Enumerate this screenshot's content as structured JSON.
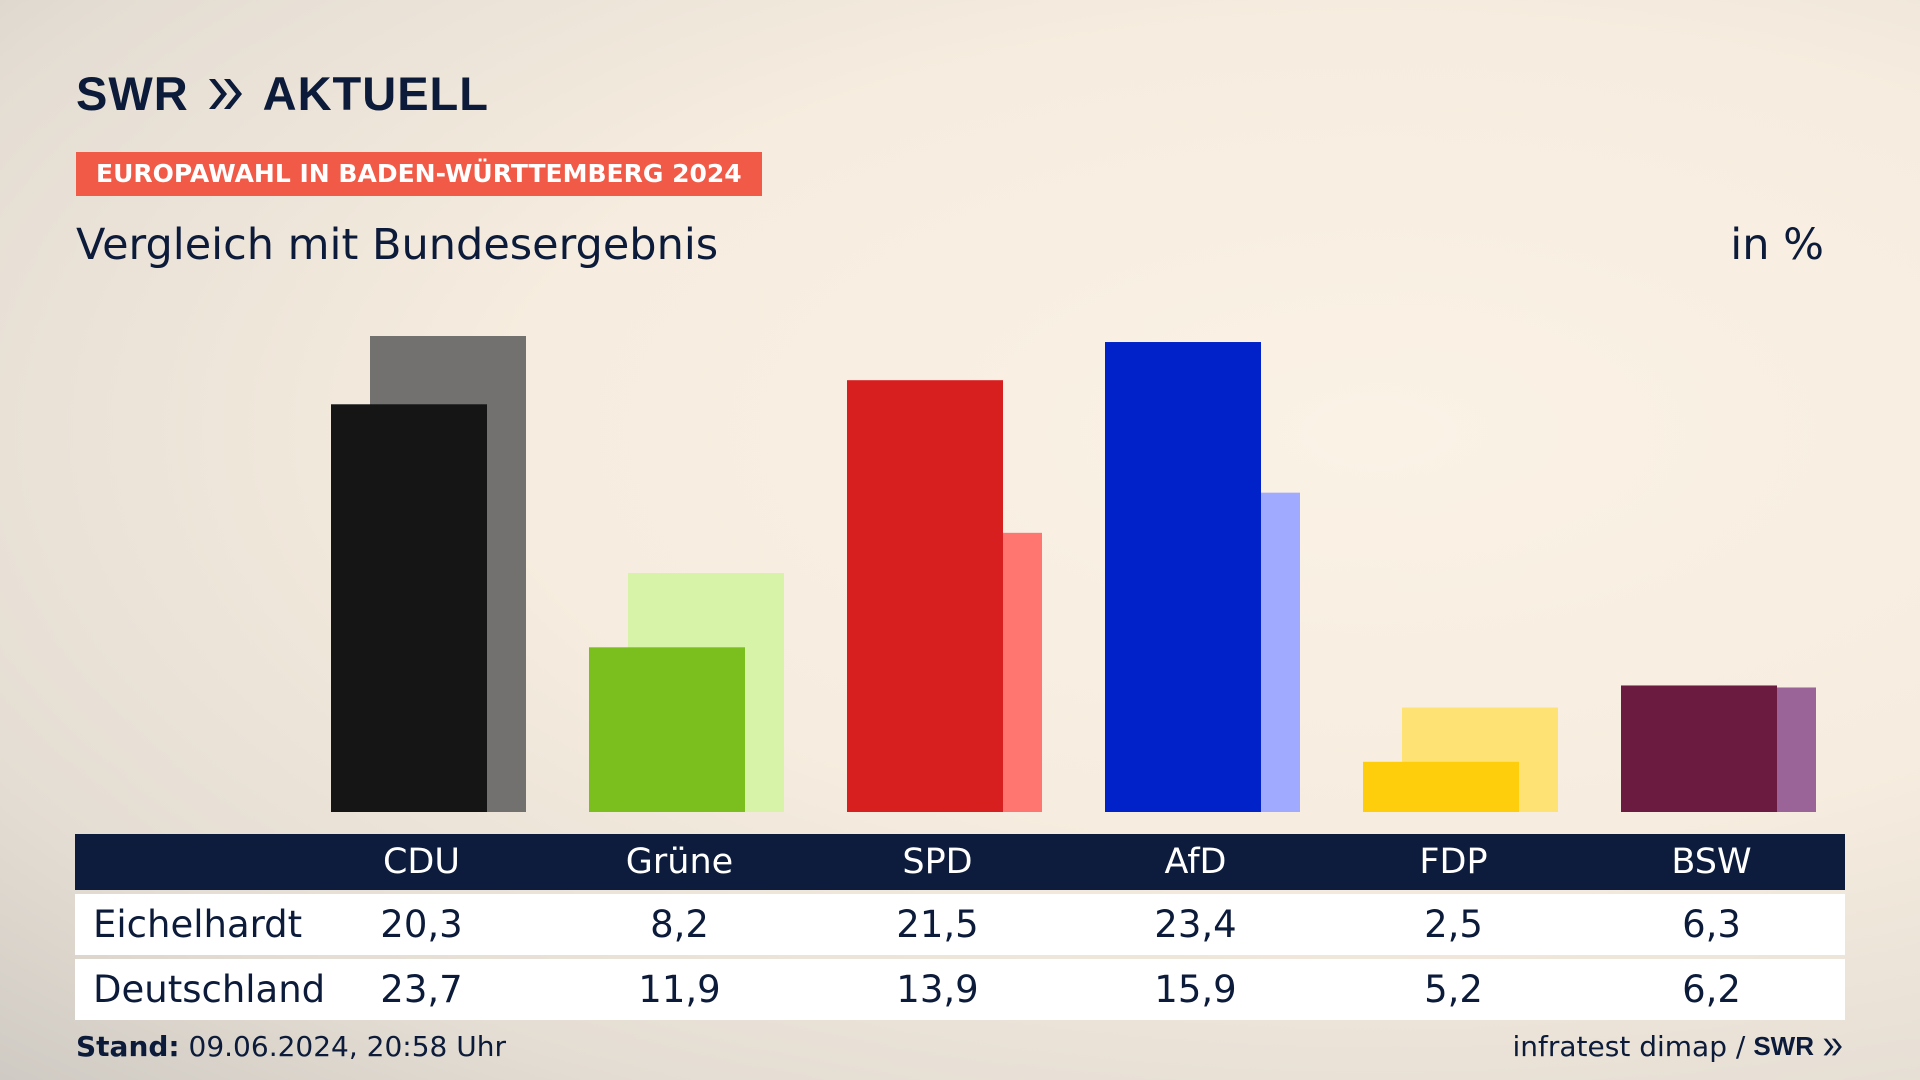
{
  "header": {
    "brand": "SWR",
    "brand_word": "AKTUELL",
    "topic": "EUROPAWAHL IN BADEN-WÜRTTEMBERG 2024",
    "subtitle": "Vergleich mit Bundesergebnis",
    "unit": "in %"
  },
  "chart_data": {
    "type": "bar",
    "title": "Vergleich mit Bundesergebnis",
    "unit": "in %",
    "categories": [
      "CDU",
      "Grüne",
      "SPD",
      "AfD",
      "FDP",
      "BSW"
    ],
    "series": [
      {
        "name": "Eichelhardt",
        "values": [
          20.3,
          8.2,
          21.5,
          23.4,
          2.5,
          6.3
        ],
        "colors": [
          "#151515",
          "#7bbf1e",
          "#d71f20",
          "#0022c8",
          "#fecd0b",
          "#6b1a40"
        ]
      },
      {
        "name": "Deutschland",
        "values": [
          23.7,
          11.9,
          13.9,
          15.9,
          5.2,
          6.2
        ],
        "colors": [
          "#737070",
          "#d6f3a8",
          "#ff7570",
          "#a0abff",
          "#fee274",
          "#9b6498"
        ]
      }
    ],
    "ylim": [
      0,
      23.7
    ],
    "grid": false,
    "legend": "table-below"
  },
  "table": {
    "headers": [
      "CDU",
      "Grüne",
      "SPD",
      "AfD",
      "FDP",
      "BSW"
    ],
    "rows": [
      {
        "label": "Eichelhardt",
        "values": [
          "20,3",
          "8,2",
          "21,5",
          "23,4",
          "2,5",
          "6,3"
        ]
      },
      {
        "label": "Deutschland",
        "values": [
          "23,7",
          "11,9",
          "13,9",
          "15,9",
          "5,2",
          "6,2"
        ]
      }
    ]
  },
  "footer": {
    "stand_label": "Stand:",
    "stand_value": "09.06.2024, 20:58 Uhr",
    "source": "infratest dimap /",
    "source_brand": "SWR"
  },
  "icons": {
    "brand_arrow": "double-chevron-right-icon"
  }
}
